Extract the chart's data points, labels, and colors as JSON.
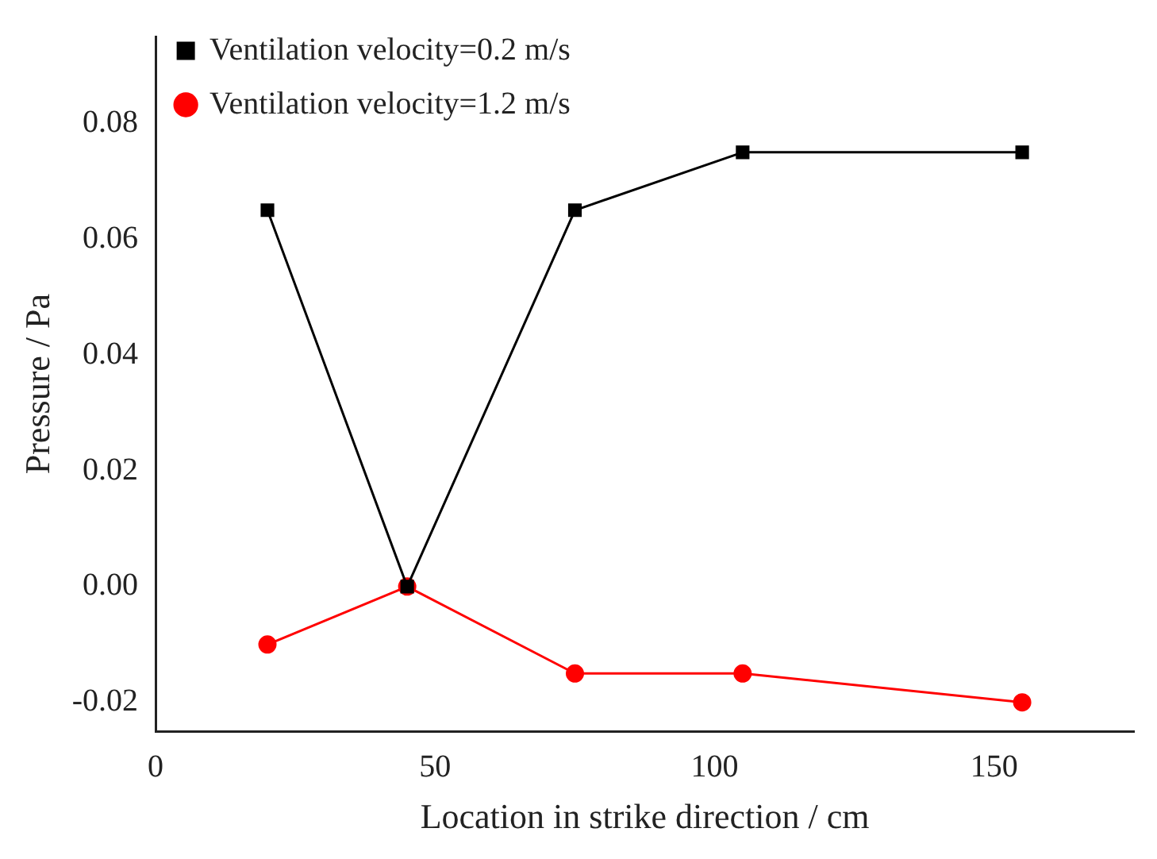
{
  "chart_data": {
    "type": "line",
    "xlabel": "Location in strike direction / cm",
    "ylabel": "Pressure / Pa",
    "x": [
      20,
      45,
      75,
      105,
      155
    ],
    "series": [
      {
        "name": "Ventilation velocity=0.2 m/s",
        "color": "#000000",
        "marker": "square",
        "values": [
          0.065,
          0,
          0.065,
          0.075,
          0.075
        ]
      },
      {
        "name": "Ventilation velocity=1.2 m/s",
        "color": "#ff0000",
        "marker": "circle",
        "values": [
          -0.01,
          0,
          -0.015,
          -0.015,
          -0.02
        ]
      }
    ],
    "xlim": [
      0,
      175
    ],
    "xticks": [
      0,
      50,
      100,
      150
    ],
    "ylim": [
      -0.025,
      0.095
    ],
    "yticks": [
      -0.02,
      {
        "value": 0,
        "label": "0.00"
      },
      0.02,
      0.04,
      0.06,
      0.08
    ],
    "grid": false,
    "legend": "top left",
    "line_style": "solid"
  }
}
